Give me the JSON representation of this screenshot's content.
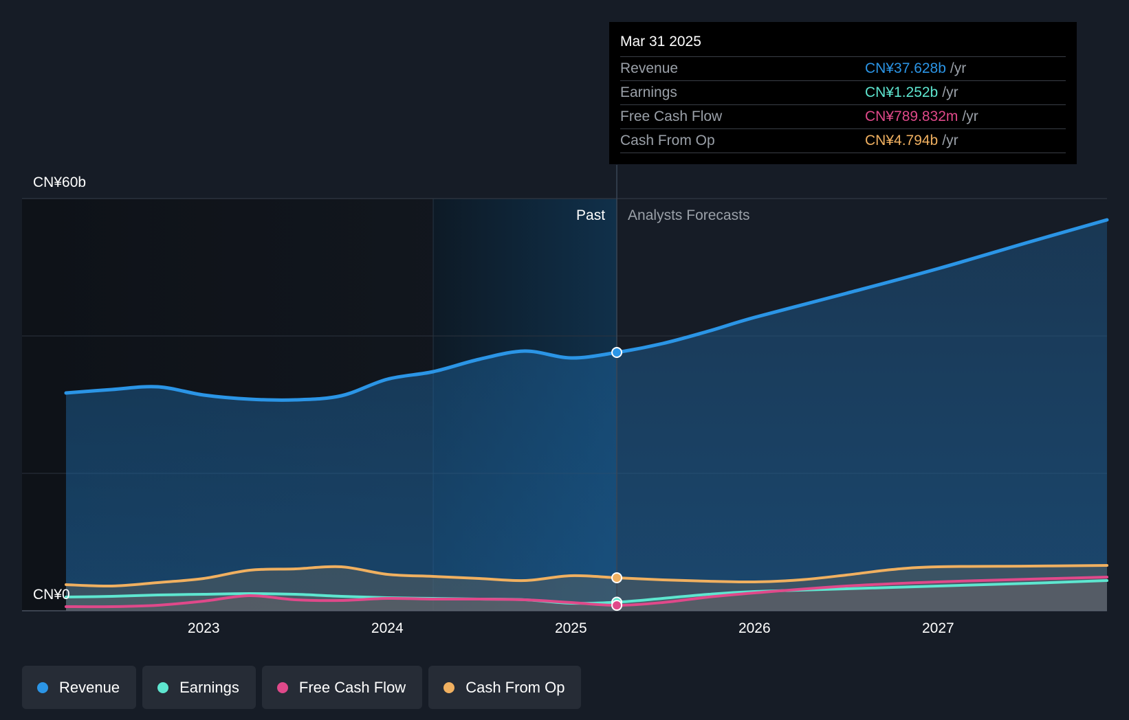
{
  "tooltip": {
    "date": "Mar 31 2025",
    "rows": [
      {
        "label": "Revenue",
        "value": "CN¥37.628b",
        "unit": "/yr",
        "color": "#2b95e6"
      },
      {
        "label": "Earnings",
        "value": "CN¥1.252b",
        "unit": "/yr",
        "color": "#5ee6d0"
      },
      {
        "label": "Free Cash Flow",
        "value": "CN¥789.832m",
        "unit": "/yr",
        "color": "#e0498a"
      },
      {
        "label": "Cash From Op",
        "value": "CN¥4.794b",
        "unit": "/yr",
        "color": "#f0b060"
      }
    ]
  },
  "legend": [
    {
      "label": "Revenue",
      "color": "#2b95e6"
    },
    {
      "label": "Earnings",
      "color": "#5ee6d0"
    },
    {
      "label": "Free Cash Flow",
      "color": "#e0498a"
    },
    {
      "label": "Cash From Op",
      "color": "#f0b060"
    }
  ],
  "chart_data": {
    "type": "line",
    "y_axis_labels": {
      "top": "CN¥60b",
      "bottom": "CN¥0"
    },
    "ylim": [
      0,
      60
    ],
    "xlim": [
      2022.25,
      2027.92
    ],
    "x_ticks": [
      {
        "value": 2023,
        "label": "2023"
      },
      {
        "value": 2024,
        "label": "2024"
      },
      {
        "value": 2025,
        "label": "2025"
      },
      {
        "value": 2026,
        "label": "2026"
      },
      {
        "value": 2027,
        "label": "2027"
      }
    ],
    "gridlines": [
      0,
      20,
      40,
      60
    ],
    "past_label": "Past",
    "forecast_label": "Analysts Forecasts",
    "past_highlight_start": 2024.25,
    "divider_x": 2025.25,
    "series": [
      {
        "name": "Revenue",
        "color": "#2b95e6",
        "x": [
          2022.25,
          2022.5,
          2022.75,
          2023.0,
          2023.25,
          2023.5,
          2023.75,
          2024.0,
          2024.25,
          2024.5,
          2024.75,
          2025.0,
          2025.25,
          2025.5,
          2025.75,
          2026.0,
          2026.5,
          2027.0,
          2027.5,
          2027.92
        ],
        "y": [
          31.7,
          32.2,
          32.6,
          31.4,
          30.8,
          30.7,
          31.3,
          33.7,
          34.8,
          36.6,
          37.8,
          36.8,
          37.6,
          38.9,
          40.7,
          42.7,
          46.2,
          49.8,
          53.7,
          56.9
        ]
      },
      {
        "name": "Earnings",
        "color": "#5ee6d0",
        "x": [
          2022.25,
          2022.5,
          2022.75,
          2023.0,
          2023.25,
          2023.5,
          2023.75,
          2024.0,
          2024.25,
          2024.5,
          2024.75,
          2025.0,
          2025.25,
          2025.5,
          2025.75,
          2026.0,
          2026.5,
          2027.0,
          2027.5,
          2027.92
        ],
        "y": [
          2.0,
          2.1,
          2.3,
          2.4,
          2.5,
          2.4,
          2.1,
          1.9,
          1.8,
          1.7,
          1.6,
          1.1,
          1.25,
          1.8,
          2.4,
          2.8,
          3.2,
          3.6,
          4.0,
          4.4
        ]
      },
      {
        "name": "Free Cash Flow",
        "color": "#e0498a",
        "x": [
          2022.25,
          2022.5,
          2022.75,
          2023.0,
          2023.25,
          2023.5,
          2023.75,
          2024.0,
          2024.25,
          2024.5,
          2024.75,
          2025.0,
          2025.25,
          2025.5,
          2025.75,
          2026.0,
          2026.5,
          2027.0,
          2027.5,
          2027.92
        ],
        "y": [
          0.6,
          0.6,
          0.8,
          1.4,
          2.2,
          1.6,
          1.5,
          1.8,
          1.7,
          1.7,
          1.6,
          1.2,
          0.79,
          1.2,
          2.0,
          2.6,
          3.6,
          4.2,
          4.6,
          4.9
        ]
      },
      {
        "name": "Cash From Op",
        "color": "#f0b060",
        "x": [
          2022.25,
          2022.5,
          2022.75,
          2023.0,
          2023.25,
          2023.5,
          2023.75,
          2024.0,
          2024.25,
          2024.5,
          2024.75,
          2025.0,
          2025.25,
          2025.5,
          2025.75,
          2026.0,
          2026.25,
          2026.5,
          2026.75,
          2027.0,
          2027.5,
          2027.92
        ],
        "y": [
          3.8,
          3.6,
          4.1,
          4.7,
          5.9,
          6.1,
          6.4,
          5.3,
          5.0,
          4.7,
          4.4,
          5.1,
          4.8,
          4.5,
          4.3,
          4.2,
          4.5,
          5.2,
          6.0,
          6.4,
          6.5,
          6.6
        ]
      }
    ],
    "highlight_x": 2025.25
  }
}
